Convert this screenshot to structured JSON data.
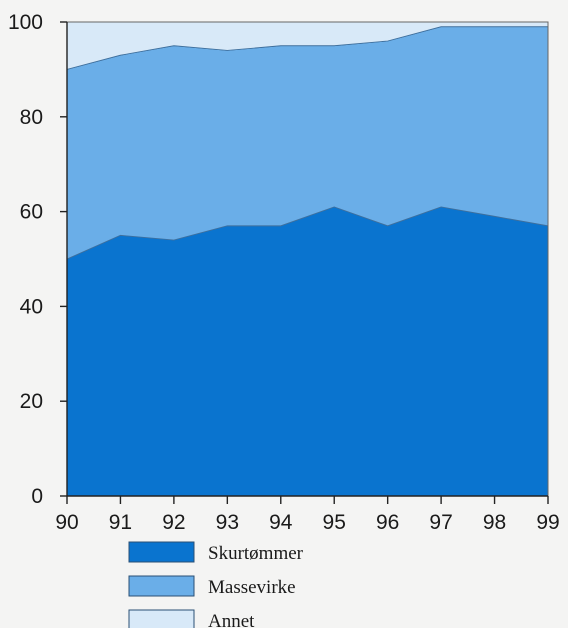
{
  "chart_data": {
    "type": "area",
    "stacked": true,
    "title": "",
    "xlabel": "",
    "ylabel": "",
    "x": [
      "90",
      "91",
      "92",
      "93",
      "94",
      "95",
      "96",
      "97",
      "98",
      "99"
    ],
    "ylim": [
      0,
      100
    ],
    "yticks": [
      "0",
      "20",
      "40",
      "60",
      "80",
      "100"
    ],
    "grid": false,
    "legend_position": "bottom",
    "series": [
      {
        "name": "Skurtømmer",
        "color": "#0a74cf",
        "values": [
          50,
          55,
          54,
          57,
          57,
          61,
          57,
          61,
          59,
          57
        ]
      },
      {
        "name": "Massevirke",
        "color": "#6aaee8",
        "values": [
          40,
          38,
          41,
          37,
          38,
          34,
          39,
          38,
          40,
          42
        ]
      },
      {
        "name": "Annet",
        "color": "#d8e9f8",
        "values": [
          10,
          7,
          5,
          6,
          5,
          5,
          4,
          1,
          1,
          1
        ]
      }
    ]
  }
}
